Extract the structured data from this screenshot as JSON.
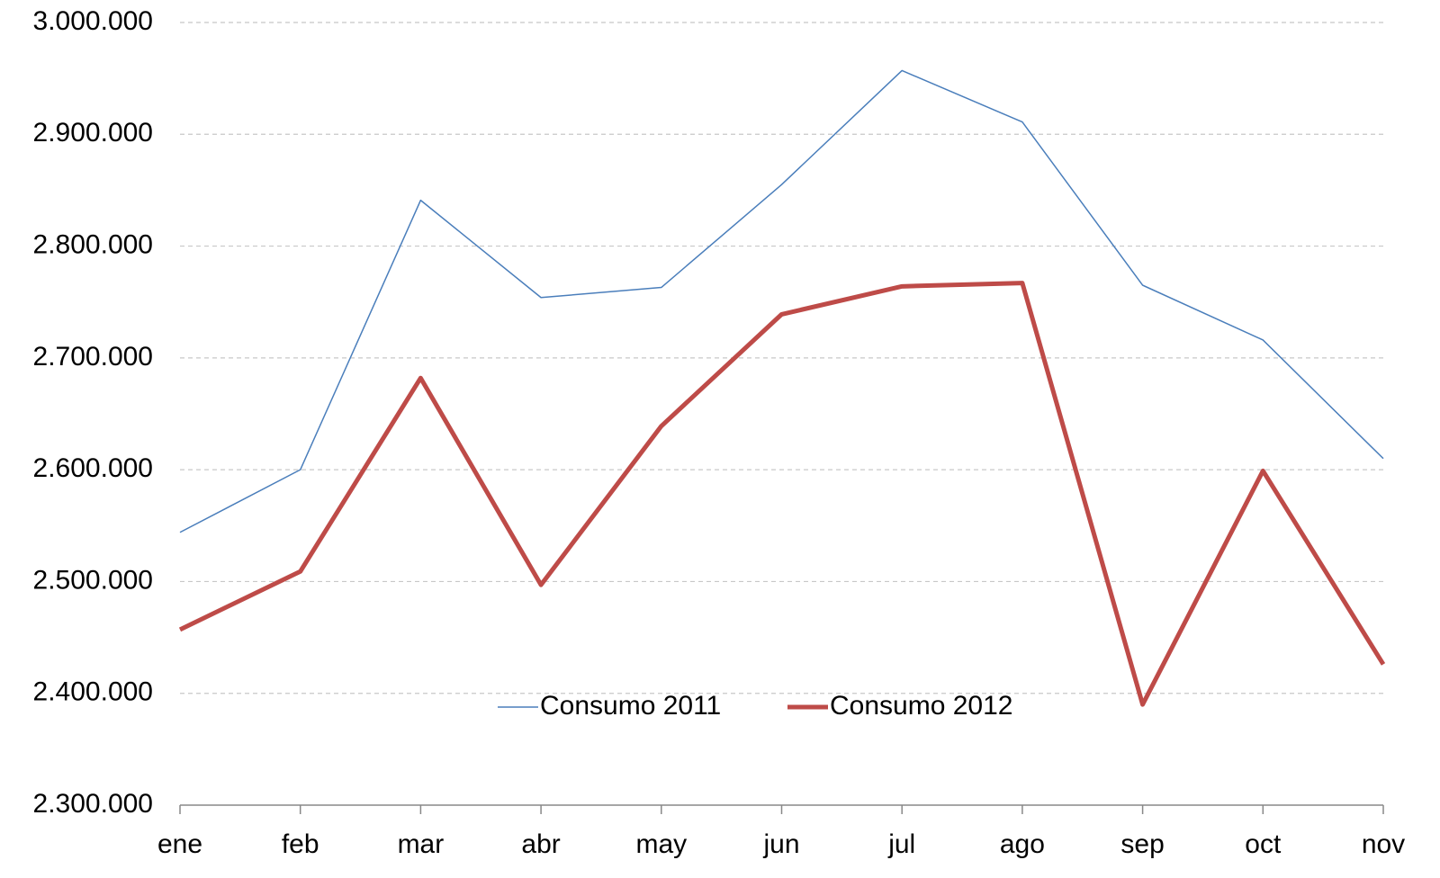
{
  "chart_data": {
    "type": "line",
    "categories": [
      "ene",
      "feb",
      "mar",
      "abr",
      "may",
      "jun",
      "jul",
      "ago",
      "sep",
      "oct",
      "nov"
    ],
    "series": [
      {
        "name": "Consumo 2011",
        "color": "#4a7ebb",
        "width": 1.5,
        "values": [
          2544000,
          2600000,
          2841000,
          2754000,
          2763000,
          2855000,
          2957000,
          2911000,
          2765000,
          2716000,
          2610000
        ]
      },
      {
        "name": "Consumo 2012",
        "color": "#be4b48",
        "width": 5,
        "values": [
          2457000,
          2509000,
          2682000,
          2497000,
          2639000,
          2739000,
          2764000,
          2767000,
          2390000,
          2599000,
          2426000
        ]
      }
    ],
    "ylim": [
      2300000,
      3000000
    ],
    "yticks": [
      {
        "value": 2300000,
        "label": "2.300.000"
      },
      {
        "value": 2400000,
        "label": "2.400.000"
      },
      {
        "value": 2500000,
        "label": "2.500.000"
      },
      {
        "value": 2600000,
        "label": "2.600.000"
      },
      {
        "value": 2700000,
        "label": "2.700.000"
      },
      {
        "value": 2800000,
        "label": "2.800.000"
      },
      {
        "value": 2900000,
        "label": "2.900.000"
      },
      {
        "value": 3000000,
        "label": "3.000.000"
      }
    ],
    "grid": true,
    "legend": "bottom"
  }
}
